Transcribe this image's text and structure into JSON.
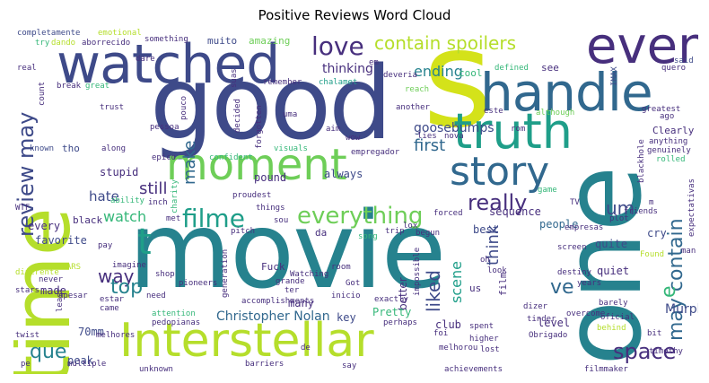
{
  "title": "Positive Reviews Word Cloud",
  "colors": {
    "dark_purple": "#472f7d",
    "purple": "#3e4a89",
    "blue": "#31688e",
    "teal": "#26828e",
    "green_teal": "#1f9e89",
    "green": "#35b779",
    "light_green": "#6ece58",
    "lime": "#b5de2b",
    "yellow": "#fde725"
  },
  "words": {
    "movie": "movie",
    "good": "good",
    "one": "one",
    "time": "time",
    "s": "s",
    "watched": "watched",
    "handle": "handle",
    "even": "even",
    "truth": "truth",
    "moment": "moment",
    "story": "story",
    "interstellar": "Interstellar",
    "review_may": "review may",
    "love": "love",
    "contain_spoilers": "contain spoilers",
    "filme": "filme",
    "everything": "everything",
    "may_contain": "may contain",
    "space": "space",
    "really": "really",
    "t": "t",
    "e": "e",
    "still": "still",
    "watch": "watch",
    "make": "make",
    "first": "first",
    "goosebumps": "goosebumps",
    "thinking": "thinking",
    "ending": "ending",
    "hate": "hate",
    "way": "way",
    "top": "top",
    "que": "que",
    "ve": "ve",
    "um": "um",
    "think": "think",
    "liked": "liked",
    "scene": "scene",
    "christopher_nolan": "Christopher Nolan",
    "murph": "Murph",
    "better": "better",
    "every": "every",
    "favorite": "favorite",
    "seventy_mm": "70mm",
    "best": "best",
    "people": "people",
    "cry": "cry",
    "quite": "quite",
    "quiet": "quiet",
    "level": "level",
    "club": "club",
    "many": "many",
    "pretty": "Pretty",
    "key": "key",
    "peak": "peak",
    "made": "made",
    "sequence": "sequence",
    "stupid": "stupid",
    "pound": "pound",
    "always": "always",
    "another": "another",
    "completamente": "completamente",
    "emotional": "emotional",
    "try": "try",
    "dando": "dando",
    "aborrecido": "aborrecido",
    "something": "something",
    "muito": "muito",
    "amazing": "amazing",
    "real": "real",
    "count": "count",
    "dare": "dare",
    "break": "break",
    "great": "great",
    "remember": "remember",
    "suas": "suas",
    "chalamet": "chalamet",
    "em": "em",
    "deveria": "deveria",
    "cool": "cool",
    "defined": "defined",
    "see": "see",
    "imax": "IMAX",
    "quero": "quero",
    "said": "said",
    "trust": "trust",
    "pessoa": "pessoa",
    "pouco": "pouco",
    "decided": "decided",
    "uma": "uma",
    "aim": "aim",
    "reach": "reach",
    "este": "este",
    "although": "although",
    "greatest": "greatest",
    "ago": "ago",
    "known": "known",
    "tho": "tho",
    "along": "along",
    "epico": "epico",
    "confident": "confident",
    "forgotten": "forgotten",
    "visuals": "visuals",
    "wow": "wow",
    "empregador": "empregador",
    "lies": "lies",
    "nova": "nova",
    "rom": "rom",
    "clearly": "Clearly",
    "anything": "anything",
    "genuinely": "genuinely",
    "rolled": "rolled",
    "blackhole": "blackhole",
    "expectativas": "expectativas",
    "ability": "ability",
    "charity": "charity",
    "inch": "inch",
    "proudest": "proudest",
    "things": "things",
    "forced": "forced",
    "game": "game",
    "tv": "TV",
    "friends": "friends",
    "m": "m",
    "wtf": "WTF",
    "black": "black",
    "met": "met",
    "sou": "sou",
    "da": "da",
    "song": "song",
    "trip": "trip",
    "lox": "lox",
    "begun": "begun",
    "plot": "plot",
    "empresas": "empresas",
    "pay": "pay",
    "tears": "TEARS",
    "imagine": "imagine",
    "shop": "shop",
    "pitch": "pitch",
    "fuck": "Fuck",
    "watching": "Watching",
    "got": "Got",
    "oh": "oh",
    "film": "film",
    "screen": "screen",
    "found": "Found",
    "man": "man",
    "diferente": "diferente",
    "stars": "stars",
    "never": "never",
    "apesar": "apesar",
    "pioneers": "pioneers",
    "generation": "generation",
    "grande": "grande",
    "ter": "ter",
    "room": "room",
    "impossible": "impossible",
    "look": "look",
    "destiny": "destiny",
    "years": "years",
    "twist": "twist",
    "least": "least",
    "estar": "estar",
    "came": "came",
    "need": "need",
    "accomplishments": "accomplishments",
    "inicio": "inicio",
    "exactly": "exactly",
    "us": "us",
    "dizer": "dizer",
    "barely": "barely",
    "attention": "attention",
    "pedopianas": "pedopianas",
    "perhaps": "perhaps",
    "tinder": "tinder",
    "overcome": "overcome",
    "oficial": "oficial",
    "behind": "behind",
    "melhores": "melhores",
    "foi": "foi",
    "higher": "higher",
    "obrigado": "Obrigado",
    "bit": "bit",
    "de": "de",
    "spent": "spent",
    "multiple": "multiple",
    "barriers": "barriers",
    "melhorou": "melhorou",
    "lost": "lost",
    "unknown": "unknown",
    "say": "say",
    "achievements": "achievements",
    "filmmaker": "filmmaker",
    "timothy": "timothy",
    "pe": "pe"
  }
}
